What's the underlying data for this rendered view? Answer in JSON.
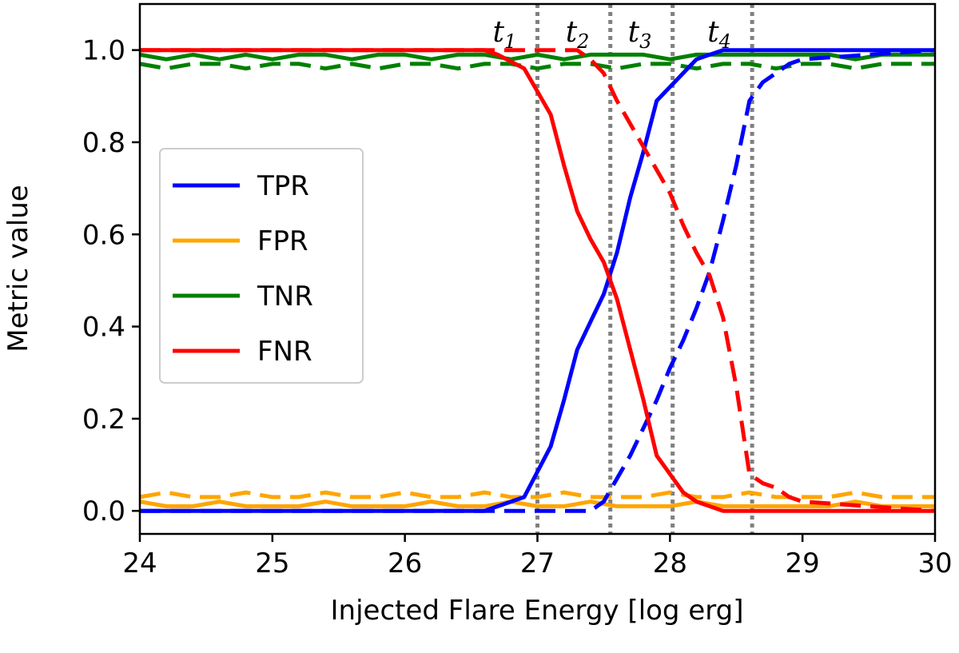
{
  "chart_data": {
    "type": "line",
    "title": "",
    "xlabel": "Injected Flare Energy [log erg]",
    "ylabel": "Metric value",
    "xlim": [
      24,
      30
    ],
    "ylim": [
      -0.05,
      1.1
    ],
    "xticks": [
      24,
      25,
      26,
      27,
      28,
      29,
      30
    ],
    "yticks": [
      0.0,
      0.2,
      0.4,
      0.6,
      0.8,
      1.0
    ],
    "ytick_labels": [
      "0.0",
      "0.2",
      "0.4",
      "0.6",
      "0.8",
      "1.0"
    ],
    "grid": false,
    "legend_position": "center-left",
    "legend": [
      {
        "label": "TPR",
        "color": "#0000ff"
      },
      {
        "label": "FPR",
        "color": "#ffa500"
      },
      {
        "label": "TNR",
        "color": "#008000"
      },
      {
        "label": "FNR",
        "color": "#ff0000"
      }
    ],
    "thresholds": [
      {
        "letter": "t",
        "sub": "1",
        "x": 27.0
      },
      {
        "letter": "t",
        "sub": "2",
        "x": 27.55
      },
      {
        "letter": "t",
        "sub": "3",
        "x": 28.02
      },
      {
        "letter": "t",
        "sub": "4",
        "x": 28.62
      }
    ],
    "series": [
      {
        "name": "TPR",
        "style": "solid",
        "color": "#0000ff",
        "x": [
          24,
          26.6,
          26.9,
          27.1,
          27.2,
          27.3,
          27.4,
          27.5,
          27.6,
          27.7,
          27.8,
          27.9,
          28.0,
          28.1,
          28.2,
          28.3,
          28.4,
          28.5,
          30
        ],
        "y": [
          0.0,
          0.0,
          0.03,
          0.14,
          0.24,
          0.35,
          0.41,
          0.47,
          0.56,
          0.68,
          0.78,
          0.89,
          0.92,
          0.95,
          0.98,
          0.99,
          1.0,
          1.0,
          1.0
        ]
      },
      {
        "name": "TPR",
        "style": "dashed",
        "color": "#0000ff",
        "x": [
          24,
          27.4,
          27.5,
          27.7,
          27.8,
          27.9,
          28.0,
          28.1,
          28.2,
          28.3,
          28.4,
          28.5,
          28.6,
          28.7,
          28.8,
          28.9,
          29.0,
          30
        ],
        "y": [
          0.0,
          0.0,
          0.02,
          0.12,
          0.18,
          0.24,
          0.31,
          0.37,
          0.44,
          0.52,
          0.63,
          0.75,
          0.89,
          0.93,
          0.95,
          0.97,
          0.98,
          1.0
        ]
      },
      {
        "name": "FNR",
        "style": "solid",
        "color": "#ff0000",
        "x": [
          24,
          26.6,
          26.7,
          26.9,
          27.0,
          27.1,
          27.2,
          27.3,
          27.4,
          27.5,
          27.6,
          27.7,
          27.8,
          27.9,
          28.0,
          28.1,
          28.2,
          28.3,
          28.4,
          30
        ],
        "y": [
          1.0,
          1.0,
          0.99,
          0.96,
          0.91,
          0.86,
          0.75,
          0.65,
          0.59,
          0.54,
          0.46,
          0.35,
          0.24,
          0.12,
          0.08,
          0.04,
          0.02,
          0.01,
          0.0,
          0.0
        ]
      },
      {
        "name": "FNR",
        "style": "dashed",
        "color": "#ff0000",
        "x": [
          24,
          27.3,
          27.4,
          27.5,
          27.6,
          27.7,
          27.8,
          27.9,
          28.0,
          28.1,
          28.2,
          28.3,
          28.4,
          28.5,
          28.6,
          28.7,
          28.8,
          28.9,
          29.0,
          30
        ],
        "y": [
          1.0,
          1.0,
          0.98,
          0.95,
          0.89,
          0.84,
          0.79,
          0.74,
          0.69,
          0.62,
          0.56,
          0.51,
          0.42,
          0.27,
          0.08,
          0.06,
          0.05,
          0.03,
          0.02,
          0.0
        ]
      },
      {
        "name": "TNR",
        "style": "solid",
        "color": "#008000",
        "x": [
          24,
          24.2,
          24.4,
          24.6,
          24.8,
          25.0,
          25.2,
          25.4,
          25.6,
          25.8,
          26.0,
          26.2,
          26.4,
          26.6,
          26.8,
          27.0,
          27.2,
          27.4,
          27.6,
          27.8,
          28.0,
          28.2,
          28.4,
          28.6,
          28.8,
          29.0,
          29.2,
          29.4,
          29.6,
          29.8,
          30
        ],
        "y": [
          0.99,
          0.98,
          0.99,
          0.98,
          0.99,
          0.98,
          0.99,
          0.99,
          0.98,
          0.99,
          0.99,
          0.98,
          0.99,
          0.99,
          0.98,
          0.99,
          0.98,
          0.99,
          0.99,
          0.99,
          0.98,
          0.99,
          0.99,
          0.99,
          0.99,
          0.99,
          0.99,
          0.98,
          0.99,
          0.99,
          0.99
        ]
      },
      {
        "name": "TNR",
        "style": "dashed",
        "color": "#008000",
        "x": [
          24,
          24.2,
          24.4,
          24.6,
          24.8,
          25.0,
          25.2,
          25.4,
          25.6,
          25.8,
          26.0,
          26.2,
          26.4,
          26.6,
          26.8,
          27.0,
          27.2,
          27.4,
          27.6,
          27.8,
          28.0,
          28.2,
          28.4,
          28.6,
          28.8,
          29.0,
          29.2,
          29.4,
          29.6,
          29.8,
          30
        ],
        "y": [
          0.97,
          0.96,
          0.97,
          0.97,
          0.96,
          0.97,
          0.97,
          0.96,
          0.97,
          0.96,
          0.97,
          0.97,
          0.96,
          0.97,
          0.97,
          0.96,
          0.97,
          0.97,
          0.96,
          0.97,
          0.97,
          0.96,
          0.97,
          0.97,
          0.96,
          0.97,
          0.97,
          0.96,
          0.97,
          0.97,
          0.97
        ]
      },
      {
        "name": "FPR",
        "style": "solid",
        "color": "#ffa500",
        "x": [
          24,
          24.2,
          24.4,
          24.6,
          24.8,
          25.0,
          25.2,
          25.4,
          25.6,
          25.8,
          26.0,
          26.2,
          26.4,
          26.6,
          26.8,
          27.0,
          27.2,
          27.4,
          27.6,
          27.8,
          28.0,
          28.2,
          28.4,
          28.6,
          28.8,
          29.0,
          29.2,
          29.4,
          29.6,
          29.8,
          30
        ],
        "y": [
          0.02,
          0.01,
          0.01,
          0.02,
          0.01,
          0.01,
          0.01,
          0.02,
          0.01,
          0.01,
          0.01,
          0.02,
          0.01,
          0.01,
          0.02,
          0.01,
          0.01,
          0.02,
          0.01,
          0.01,
          0.01,
          0.02,
          0.01,
          0.01,
          0.01,
          0.01,
          0.01,
          0.02,
          0.01,
          0.01,
          0.01
        ]
      },
      {
        "name": "FPR",
        "style": "dashed",
        "color": "#ffa500",
        "x": [
          24,
          24.2,
          24.4,
          24.6,
          24.8,
          25.0,
          25.2,
          25.4,
          25.6,
          25.8,
          26.0,
          26.2,
          26.4,
          26.6,
          26.8,
          27.0,
          27.2,
          27.4,
          27.6,
          27.8,
          28.0,
          28.2,
          28.4,
          28.6,
          28.8,
          29.0,
          29.2,
          29.4,
          29.6,
          29.8,
          30
        ],
        "y": [
          0.03,
          0.04,
          0.03,
          0.03,
          0.04,
          0.03,
          0.03,
          0.04,
          0.03,
          0.03,
          0.04,
          0.03,
          0.03,
          0.04,
          0.03,
          0.03,
          0.04,
          0.03,
          0.03,
          0.03,
          0.04,
          0.03,
          0.03,
          0.04,
          0.03,
          0.03,
          0.03,
          0.04,
          0.03,
          0.03,
          0.03
        ]
      }
    ]
  }
}
